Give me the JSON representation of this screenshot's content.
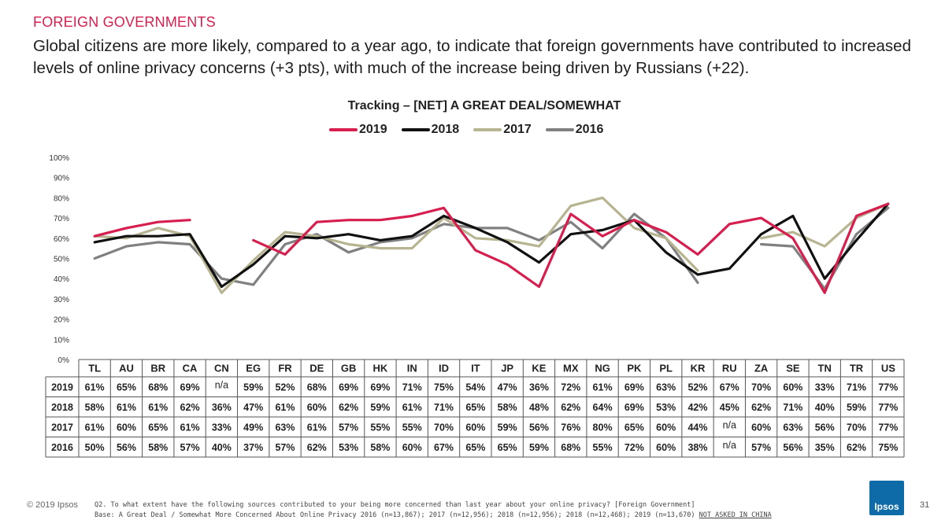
{
  "header": {
    "section": "FOREIGN GOVERNMENTS",
    "headline": "Global citizens are more likely, compared to a year ago, to indicate that foreign governments have contributed to increased levels of online privacy concerns (+3 pts), with much of the increase being driven by Russians (+22)."
  },
  "chart_data": {
    "type": "line",
    "title": "Tracking – [NET] A GREAT DEAL/SOMEWHAT",
    "categories": [
      "TL",
      "AU",
      "BR",
      "CA",
      "CN",
      "EG",
      "FR",
      "DE",
      "GB",
      "HK",
      "IN",
      "ID",
      "IT",
      "JP",
      "KE",
      "MX",
      "NG",
      "PK",
      "PL",
      "KR",
      "RU",
      "ZA",
      "SE",
      "TN",
      "TR",
      "US"
    ],
    "ylim": [
      0,
      100
    ],
    "yticks": [
      0,
      10,
      20,
      30,
      40,
      50,
      60,
      70,
      80,
      90,
      100
    ],
    "ytick_labels": [
      "0%",
      "10%",
      "20%",
      "30%",
      "40%",
      "50%",
      "60%",
      "70%",
      "80%",
      "90%",
      "100%"
    ],
    "legend_position": "top-center",
    "series": [
      {
        "name": "2019",
        "color": "#d61f4f",
        "values": [
          61,
          65,
          68,
          69,
          null,
          59,
          52,
          68,
          69,
          69,
          71,
          75,
          54,
          47,
          36,
          72,
          61,
          69,
          63,
          52,
          67,
          70,
          60,
          33,
          71,
          77
        ],
        "labels": [
          "61%",
          "65%",
          "68%",
          "69%",
          "n/a",
          "59%",
          "52%",
          "68%",
          "69%",
          "69%",
          "71%",
          "75%",
          "54%",
          "47%",
          "36%",
          "72%",
          "61%",
          "69%",
          "63%",
          "52%",
          "67%",
          "70%",
          "60%",
          "33%",
          "71%",
          "77%"
        ]
      },
      {
        "name": "2018",
        "color": "#111111",
        "values": [
          58,
          61,
          61,
          62,
          36,
          47,
          61,
          60,
          62,
          59,
          61,
          71,
          65,
          58,
          48,
          62,
          64,
          69,
          53,
          42,
          45,
          62,
          71,
          40,
          59,
          77
        ],
        "labels": [
          "58%",
          "61%",
          "61%",
          "62%",
          "36%",
          "47%",
          "61%",
          "60%",
          "62%",
          "59%",
          "61%",
          "71%",
          "65%",
          "58%",
          "48%",
          "62%",
          "64%",
          "69%",
          "53%",
          "42%",
          "45%",
          "62%",
          "71%",
          "40%",
          "59%",
          "77%"
        ]
      },
      {
        "name": "2017",
        "color": "#b7b491",
        "values": [
          61,
          60,
          65,
          61,
          33,
          49,
          63,
          61,
          57,
          55,
          55,
          70,
          60,
          59,
          56,
          76,
          80,
          65,
          60,
          44,
          null,
          60,
          63,
          56,
          70,
          77
        ],
        "labels": [
          "61%",
          "60%",
          "65%",
          "61%",
          "33%",
          "49%",
          "63%",
          "61%",
          "57%",
          "55%",
          "55%",
          "70%",
          "60%",
          "59%",
          "56%",
          "76%",
          "80%",
          "65%",
          "60%",
          "44%",
          "n/a",
          "60%",
          "63%",
          "56%",
          "70%",
          "77%"
        ]
      },
      {
        "name": "2016",
        "color": "#808080",
        "values": [
          50,
          56,
          58,
          57,
          40,
          37,
          57,
          62,
          53,
          58,
          60,
          67,
          65,
          65,
          59,
          68,
          55,
          72,
          60,
          38,
          null,
          57,
          56,
          35,
          62,
          75
        ],
        "labels": [
          "50%",
          "56%",
          "58%",
          "57%",
          "40%",
          "37%",
          "57%",
          "62%",
          "53%",
          "58%",
          "60%",
          "67%",
          "65%",
          "65%",
          "59%",
          "68%",
          "55%",
          "72%",
          "60%",
          "38%",
          "n/a",
          "57%",
          "56%",
          "35%",
          "62%",
          "75%"
        ]
      }
    ]
  },
  "footer": {
    "copyright": "© 2019 Ipsos",
    "question": "Q2. To what extent have the following sources contributed to your being more concerned than last year about your online privacy? [Foreign Government]",
    "base": "Base: A Great Deal / Somewhat More Concerned About Online Privacy 2016 (n=13,867); 2017 (n=12,956); 2018 (n=12,956); 2018 (n=12,468); 2019 (n=13,670)",
    "not_asked": "NOT ASKED IN CHINA",
    "logo_text": "Ipsos",
    "page_number": "31"
  }
}
